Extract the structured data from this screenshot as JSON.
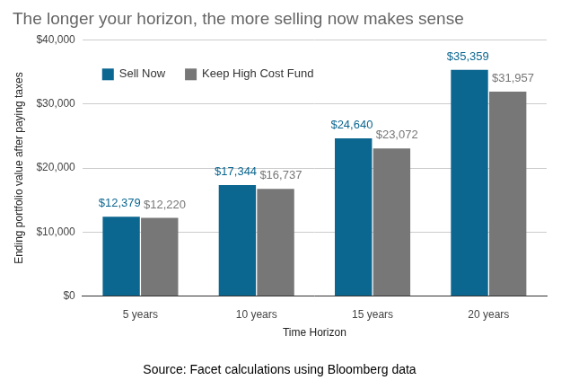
{
  "chart_data": {
    "type": "bar",
    "title": "The longer your horizon, the more selling now makes sense",
    "subtitle": "Source: Facet calculations using Bloomberg data",
    "x_label": "Time Horizon",
    "y_label": "Ending portfolio value after paying taxes",
    "categories": [
      "5 years",
      "10 years",
      "15 years",
      "20 years"
    ],
    "series": [
      {
        "name": "Sell Now",
        "color": "#0b6690",
        "values": [
          12379,
          17344,
          24640,
          35359
        ],
        "value_labels": [
          "$12,379",
          "$17,344",
          "$24,640",
          "$35,359"
        ]
      },
      {
        "name": "Keep High Cost Fund",
        "color": "#777777",
        "values": [
          12220,
          16737,
          23072,
          31957
        ],
        "value_labels": [
          "$12,220",
          "$16,737",
          "$23,072",
          "$31,957"
        ]
      }
    ],
    "ylim": [
      0,
      40000
    ],
    "yticks": [
      {
        "value": 0,
        "label": "$0"
      },
      {
        "value": 10000,
        "label": "$10,000"
      },
      {
        "value": 20000,
        "label": "$20,000"
      },
      {
        "value": 30000,
        "label": "$30,000"
      },
      {
        "value": 40000,
        "label": "$40,000"
      }
    ],
    "grid": true,
    "legend": "top-left",
    "data_labels": true
  }
}
